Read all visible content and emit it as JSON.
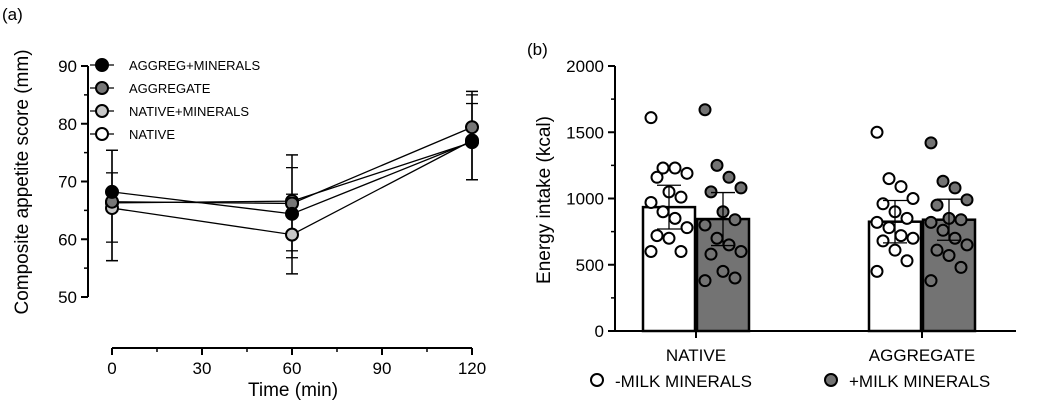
{
  "chart_data": [
    {
      "type": "line",
      "panel_label": "(a)",
      "xlabel": "Time (min)",
      "ylabel": "Composite appetite score (mm)",
      "xlim": [
        0,
        120
      ],
      "ylim": [
        50,
        90
      ],
      "x_ticks": [
        0,
        30,
        60,
        90,
        120
      ],
      "y_ticks": [
        50,
        60,
        70,
        80,
        90
      ],
      "x": [
        0,
        60,
        120
      ],
      "legend_position": "top-left",
      "series": [
        {
          "name": "AGGREG+MINERALS",
          "marker_fill": "#000000",
          "values": [
            68.2,
            64.4,
            76.9
          ],
          "error_upper": [
            75.4,
            72.4,
            85.6
          ],
          "error_lower": [
            56.3,
            56.8,
            70.3
          ]
        },
        {
          "name": "AGGREGATE",
          "marker_fill": "#777777",
          "values": [
            66.5,
            66.2,
            79.4
          ],
          "error_upper": [
            75.4,
            74.6,
            85.6
          ],
          "error_lower": [
            56.3,
            54.0,
            70.3
          ]
        },
        {
          "name": "NATIVE+MINERALS",
          "marker_fill": "#c8c8c8",
          "values": [
            65.4,
            60.8,
            77.1
          ],
          "error_upper": [
            71.5,
            67.8,
            85.0
          ],
          "error_lower": [
            59.5,
            54.0,
            70.3
          ]
        },
        {
          "name": "NATIVE",
          "marker_fill": "#ffffff",
          "values": [
            66.3,
            66.6,
            76.8
          ],
          "error_upper": [
            75.4,
            74.6,
            83.5
          ],
          "error_lower": [
            56.3,
            58.0,
            70.3
          ]
        }
      ]
    },
    {
      "type": "bar",
      "panel_label": "(b)",
      "ylabel": "Energy intake (kcal)",
      "ylim": [
        0,
        2000
      ],
      "y_ticks": [
        0,
        500,
        1000,
        1500,
        2000
      ],
      "categories": [
        "NATIVE",
        "AGGREGATE"
      ],
      "legend_position": "bottom",
      "series": [
        {
          "name": "-MILK MINERALS",
          "fill": "#ffffff",
          "values": [
            935,
            825
          ],
          "error": [
            165,
            160
          ],
          "points": [
            [
              1610,
              1230,
              1230,
              1190,
              1160,
              1050,
              1010,
              970,
              900,
              850,
              780,
              720,
              700,
              600,
              600
            ],
            [
              1500,
              1150,
              1090,
              1000,
              960,
              900,
              850,
              820,
              780,
              720,
              700,
              680,
              610,
              530,
              450
            ]
          ]
        },
        {
          "name": "+MILK MINERALS",
          "fill": "#737373",
          "values": [
            845,
            840
          ],
          "error": [
            200,
            155
          ],
          "points": [
            [
              1670,
              1250,
              1160,
              1080,
              1050,
              900,
              840,
              800,
              700,
              650,
              600,
              580,
              450,
              400,
              380
            ],
            [
              1420,
              1130,
              1080,
              990,
              950,
              850,
              840,
              820,
              760,
              700,
              650,
              610,
              570,
              480,
              380
            ]
          ]
        }
      ]
    }
  ]
}
